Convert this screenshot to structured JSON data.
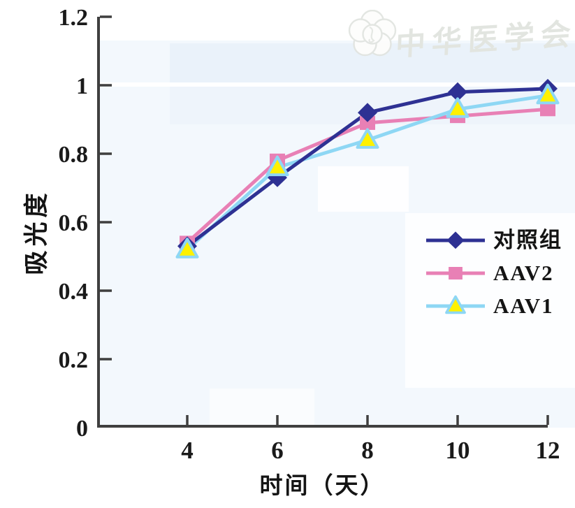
{
  "watermark": {
    "text": "中华医学会",
    "logo": "cma-plum-blossom-seal"
  },
  "chart_data": {
    "type": "line",
    "title": "",
    "xlabel": "时间（天）",
    "ylabel": "吸光度",
    "x": [
      4,
      6,
      8,
      10,
      12
    ],
    "xticks": [
      4,
      6,
      8,
      10,
      12
    ],
    "xtick_labels": [
      "4",
      "6",
      "8",
      "10",
      "12"
    ],
    "yticks": [
      0,
      0.2,
      0.4,
      0.6,
      0.8,
      1,
      1.2
    ],
    "ytick_labels": [
      "0",
      "0.2",
      "0.4",
      "0.6",
      "0.8",
      "1",
      "1.2"
    ],
    "xlim": [
      2,
      12
    ],
    "ylim": [
      0,
      1.2
    ],
    "grid": false,
    "legend_position": "inside-right-middle",
    "axis_color": "#3f3f3f",
    "series": [
      {
        "name": "对照组",
        "marker": "diamond",
        "color": "#2e3193",
        "marker_fill": "#2e3193",
        "values": [
          0.53,
          0.73,
          0.92,
          0.98,
          0.99
        ]
      },
      {
        "name": "AAV2",
        "marker": "square",
        "color": "#e880b5",
        "marker_fill": "#e880b5",
        "values": [
          0.54,
          0.78,
          0.89,
          0.91,
          0.93
        ]
      },
      {
        "name": "AAV1",
        "marker": "triangle",
        "color": "#8ed7f4",
        "marker_fill": "#fff100",
        "values": [
          0.52,
          0.76,
          0.84,
          0.93,
          0.97
        ]
      }
    ]
  }
}
